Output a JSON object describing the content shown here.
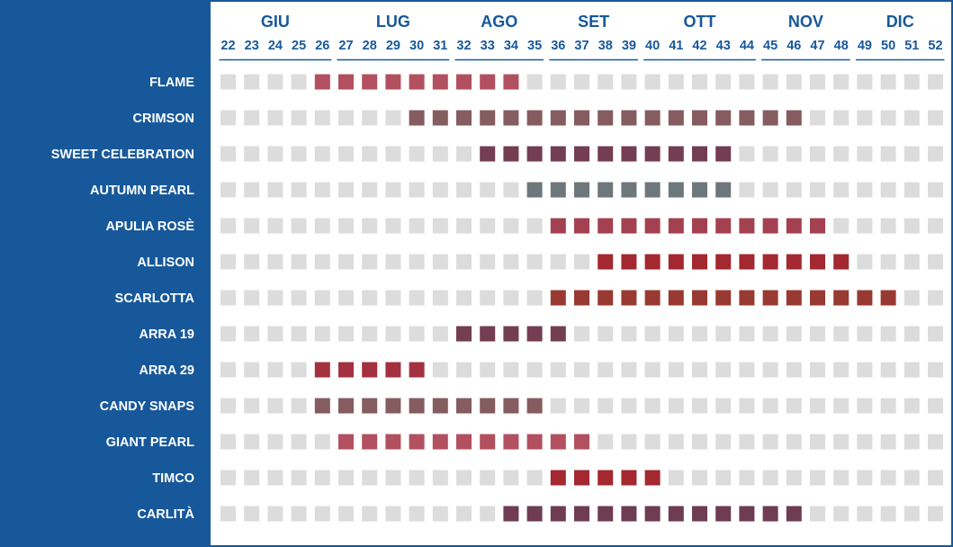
{
  "chart_data": {
    "type": "heatmap",
    "months": [
      {
        "label": "GIU",
        "weeks": [
          22,
          23,
          24,
          25,
          26
        ]
      },
      {
        "label": "LUG",
        "weeks": [
          27,
          28,
          29,
          30,
          31
        ]
      },
      {
        "label": "AGO",
        "weeks": [
          32,
          33,
          34,
          35
        ]
      },
      {
        "label": "SET",
        "weeks": [
          36,
          37,
          38,
          39
        ]
      },
      {
        "label": "OTT",
        "weeks": [
          40,
          41,
          42,
          43,
          44
        ]
      },
      {
        "label": "NOV",
        "weeks": [
          45,
          46,
          47,
          48
        ]
      },
      {
        "label": "DIC",
        "weeks": [
          49,
          50,
          51,
          52
        ]
      }
    ],
    "inactive_color": "#dcdcdc",
    "varieties": [
      {
        "name": "FLAME",
        "start": 26,
        "end": 34,
        "color": "#b2505f"
      },
      {
        "name": "CRIMSON",
        "start": 30,
        "end": 46,
        "color": "#855c5f"
      },
      {
        "name": "SWEET CELEBRATION",
        "start": 33,
        "end": 43,
        "color": "#743e52"
      },
      {
        "name": "AUTUMN PEARL",
        "start": 35,
        "end": 43,
        "color": "#6e777b"
      },
      {
        "name": "APULIA ROSÈ",
        "start": 36,
        "end": 47,
        "color": "#a44150"
      },
      {
        "name": "ALLISON",
        "start": 38,
        "end": 48,
        "color": "#a3282f"
      },
      {
        "name": "SCARLOTTA",
        "start": 36,
        "end": 50,
        "color": "#983a31"
      },
      {
        "name": "ARRA 19",
        "start": 32,
        "end": 36,
        "color": "#743e52"
      },
      {
        "name": "ARRA 29",
        "start": 26,
        "end": 30,
        "color": "#a3313f"
      },
      {
        "name": "CANDY SNAPS",
        "start": 26,
        "end": 35,
        "color": "#855c5f"
      },
      {
        "name": "GIANT PEARL",
        "start": 27,
        "end": 37,
        "color": "#b2505f"
      },
      {
        "name": "TIMCO",
        "start": 36,
        "end": 40,
        "color": "#a3282f"
      },
      {
        "name": "CARLITÀ",
        "start": 34,
        "end": 46,
        "color": "#6e3c53"
      }
    ]
  }
}
